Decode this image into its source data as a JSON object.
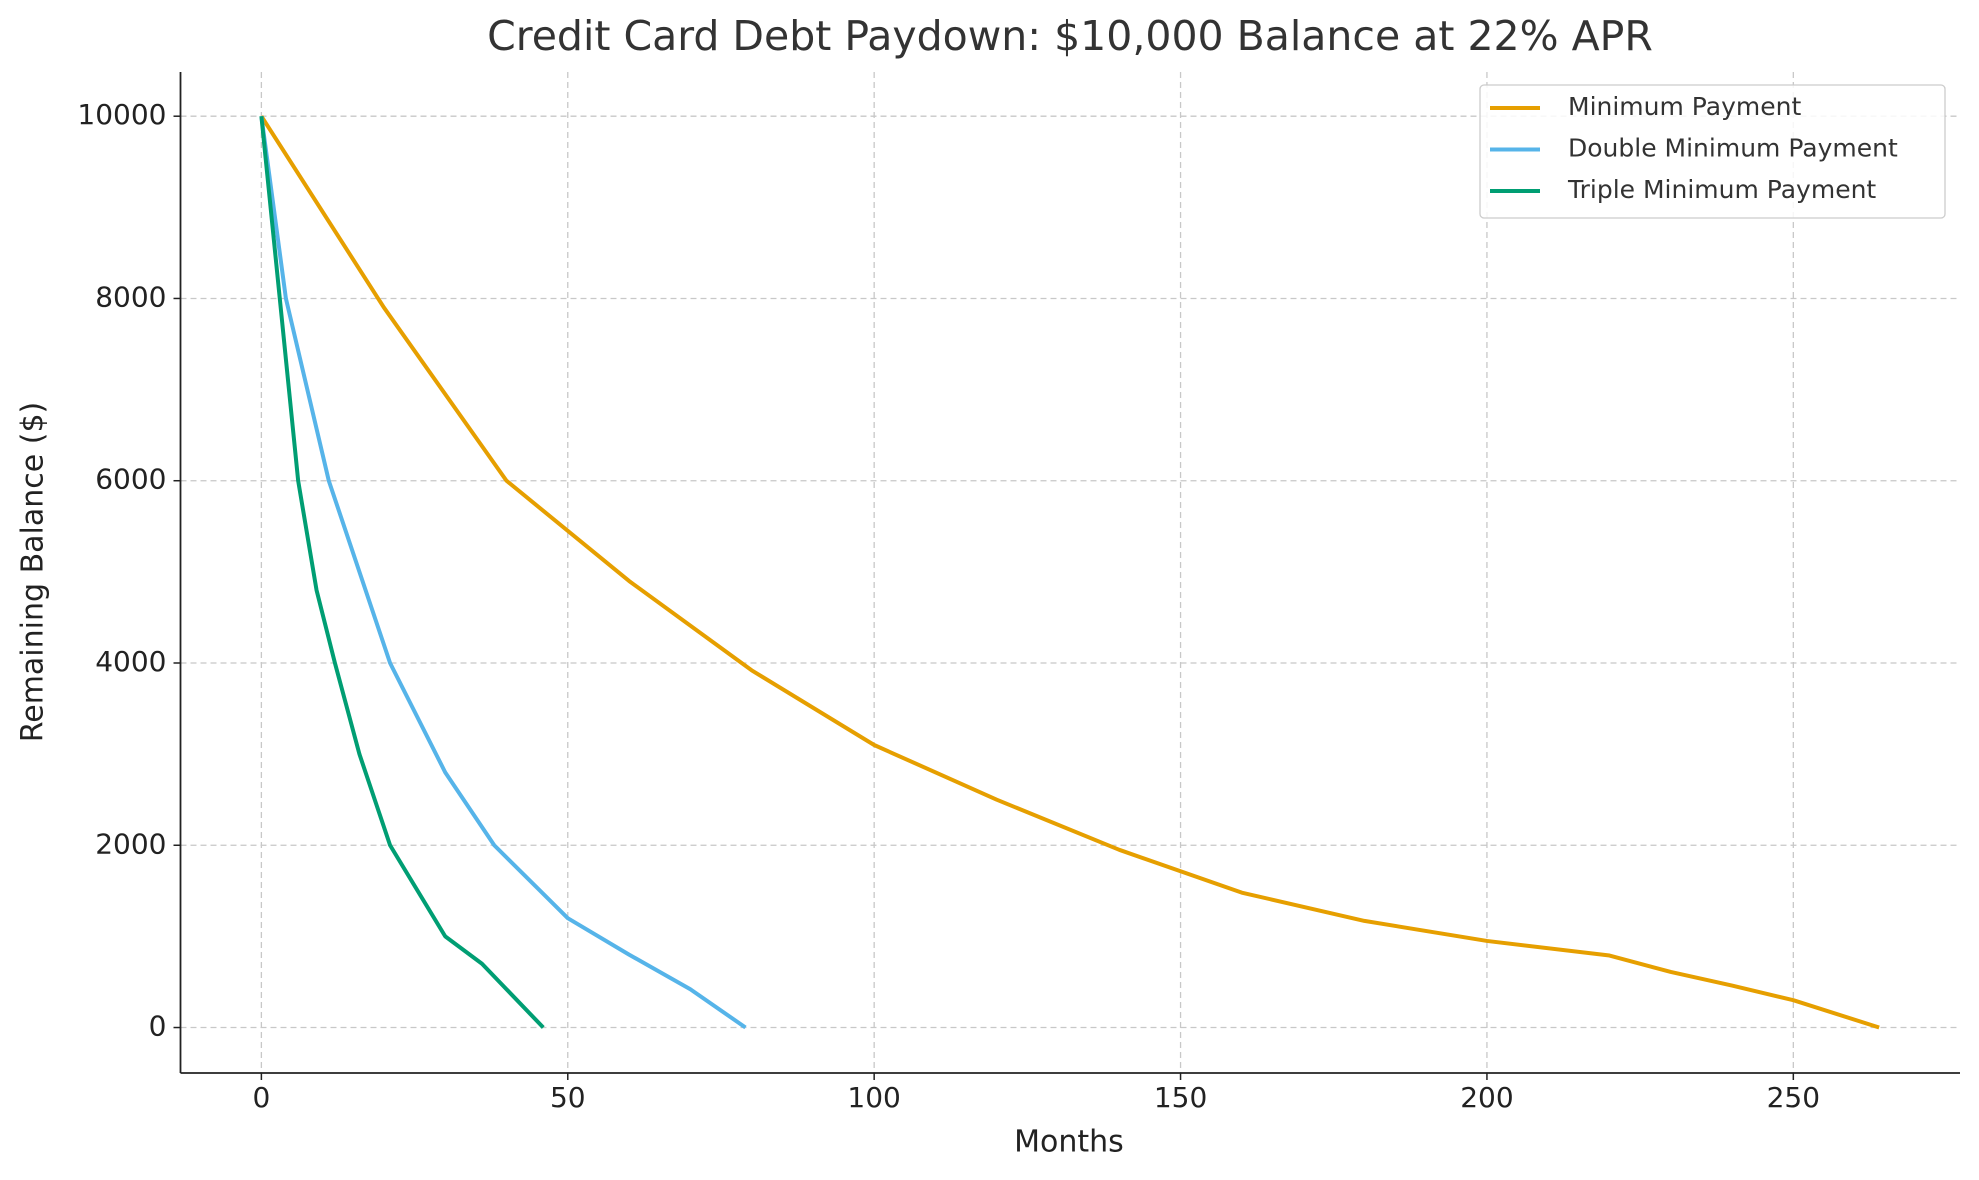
{
  "chart_data": {
    "type": "line",
    "title": "Credit Card Debt Paydown: $10,000 Balance at 22% APR",
    "xlabel": "Months",
    "ylabel": "Remaining Balance ($)",
    "xlim": [
      -13.2,
      277.2
    ],
    "ylim": [
      -499,
      10485
    ],
    "xticks": [
      0,
      50,
      100,
      150,
      200,
      250
    ],
    "yticks": [
      0,
      2000,
      4000,
      6000,
      8000,
      10000
    ],
    "grid": true,
    "legend": "upper right",
    "series": [
      {
        "name": "Minimum Payment",
        "color": "#e69f00",
        "x": [
          0,
          20,
          40,
          60,
          80,
          100,
          120,
          140,
          160,
          180,
          200,
          220,
          230,
          240,
          250,
          264
        ],
        "values": [
          10000,
          7900,
          6000,
          4900,
          3920,
          3100,
          2500,
          1950,
          1480,
          1170,
          950,
          790,
          610,
          460,
          300,
          0
        ]
      },
      {
        "name": "Double Minimum Payment",
        "color": "#56b4e9",
        "x": [
          0,
          4,
          11,
          21,
          30,
          38,
          50,
          60,
          70,
          79
        ],
        "values": [
          10000,
          8000,
          6000,
          4000,
          2800,
          2000,
          1200,
          800,
          420,
          0
        ]
      },
      {
        "name": "Triple Minimum Payment",
        "color": "#009e73",
        "x": [
          0,
          3,
          6,
          9,
          12,
          16,
          21,
          30,
          36,
          46
        ],
        "values": [
          10000,
          8000,
          6000,
          4800,
          4000,
          3000,
          2000,
          1000,
          700,
          0
        ]
      }
    ]
  }
}
